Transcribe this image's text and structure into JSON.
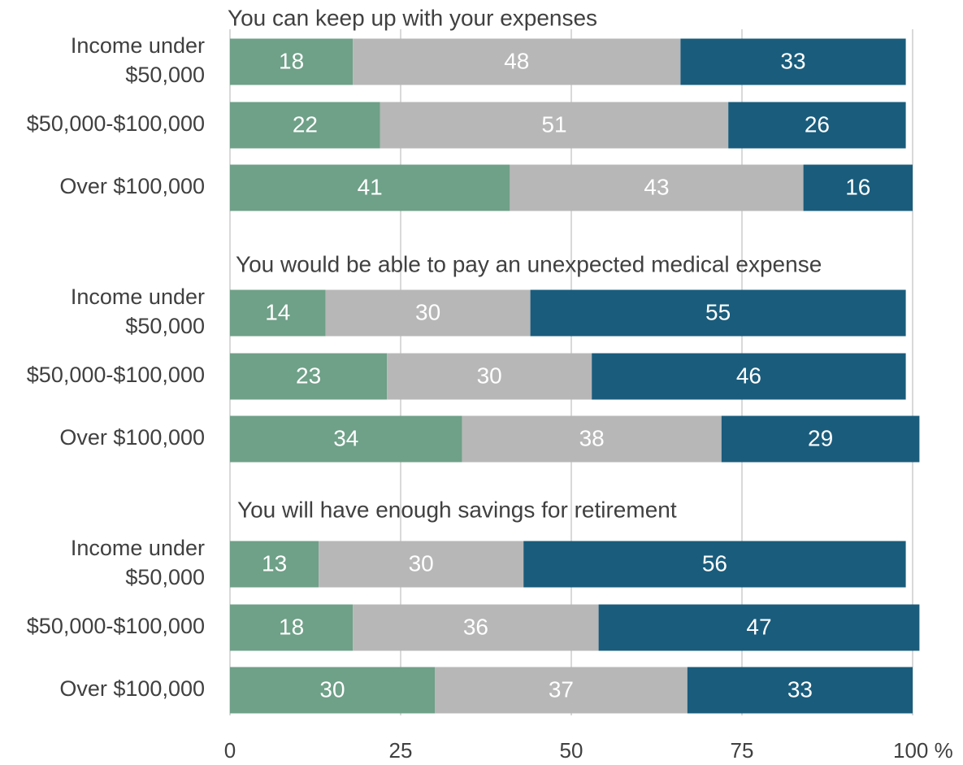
{
  "chart_data": {
    "type": "bar",
    "orientation": "horizontal",
    "stacked": true,
    "xlim": [
      0,
      100
    ],
    "x_ticks": [
      "0",
      "25",
      "50",
      "75",
      "100 %"
    ],
    "x_tick_values": [
      0,
      25,
      50,
      75,
      100
    ],
    "grid": true,
    "colors": [
      "#6fa088",
      "#b7b7b7",
      "#1a5c7c"
    ],
    "groups": [
      {
        "title": "You can keep up with your expenses",
        "rows": [
          {
            "label": [
              "Income under",
              "$50,000"
            ],
            "values": [
              18,
              48,
              33
            ]
          },
          {
            "label": [
              "$50,000-$100,000"
            ],
            "values": [
              22,
              51,
              26
            ]
          },
          {
            "label": [
              "Over $100,000"
            ],
            "values": [
              41,
              43,
              16
            ]
          }
        ]
      },
      {
        "title": "You would be able to pay an unexpected medical expense",
        "rows": [
          {
            "label": [
              "Income under",
              "$50,000"
            ],
            "values": [
              14,
              30,
              55
            ]
          },
          {
            "label": [
              "$50,000-$100,000"
            ],
            "values": [
              23,
              30,
              46
            ]
          },
          {
            "label": [
              "Over $100,000"
            ],
            "values": [
              34,
              38,
              29
            ]
          }
        ]
      },
      {
        "title": "You will have enough savings for retirement",
        "rows": [
          {
            "label": [
              "Income under",
              "$50,000"
            ],
            "values": [
              13,
              30,
              56
            ]
          },
          {
            "label": [
              "$50,000-$100,000"
            ],
            "values": [
              18,
              36,
              47
            ]
          },
          {
            "label": [
              "Over $100,000"
            ],
            "values": [
              30,
              37,
              33
            ]
          }
        ]
      }
    ]
  }
}
